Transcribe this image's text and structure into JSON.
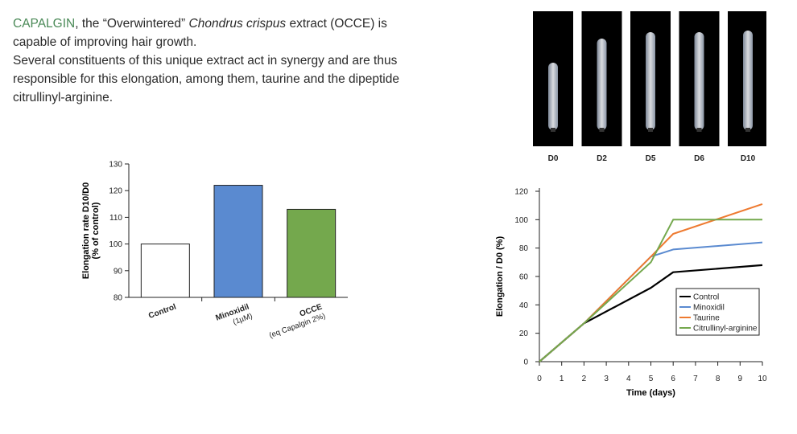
{
  "intro": {
    "line1_brand": "CAPALGIN",
    "line1_mid": ", the “Overwintered” ",
    "line1_italic": "Chondrus crispus",
    "line1_end": " extract (OCCE) is",
    "line2": "capable of improving hair growth.",
    "line3": "Several constituents of this unique extract act in synergy and are thus",
    "line4": "responsible for this elongation, among them, taurine and the dipeptide",
    "line5": "citrullinyl-arginine."
  },
  "photos": {
    "labels": [
      "D0",
      "D2",
      "D5",
      "D6",
      "D10"
    ],
    "frame_color": "#000000"
  },
  "chart_data": [
    {
      "type": "bar",
      "ylabel_line1": "Elongation rate D10/D0",
      "ylabel_line2": "(% of control)",
      "ylim": [
        80,
        130
      ],
      "yticks": [
        80,
        90,
        100,
        110,
        120,
        130
      ],
      "categories": [
        {
          "line1": "Control",
          "line2": ""
        },
        {
          "line1": "Minoxidil",
          "line2": "(1µM)"
        },
        {
          "line1": "OCCE",
          "line2": "(eq Capalgin 2%)"
        }
      ],
      "values": [
        100,
        122,
        113
      ],
      "colors": [
        "#ffffff",
        "#5a8ad0",
        "#74a84d"
      ]
    },
    {
      "type": "line",
      "xlabel": "Time (days)",
      "ylabel": "Elongation / D0 (%)",
      "xlim": [
        0,
        10
      ],
      "ylim": [
        0,
        120
      ],
      "xticks": [
        0,
        1,
        2,
        3,
        4,
        5,
        6,
        7,
        8,
        9,
        10
      ],
      "yticks": [
        0,
        20,
        40,
        60,
        80,
        100,
        120
      ],
      "series": [
        {
          "name": "Control",
          "color": "#000000",
          "x": [
            0,
            2,
            5,
            6,
            10
          ],
          "y": [
            0,
            27,
            52,
            63,
            68
          ]
        },
        {
          "name": "Minoxidil",
          "color": "#5a8ad0",
          "x": [
            0,
            2,
            5,
            6,
            10
          ],
          "y": [
            0,
            27,
            74,
            79,
            84
          ]
        },
        {
          "name": "Taurine",
          "color": "#ee7a30",
          "x": [
            0,
            2,
            5,
            6,
            10
          ],
          "y": [
            0,
            27,
            74,
            90,
            111
          ]
        },
        {
          "name": "Citrullinyl-arginine",
          "color": "#74a84d",
          "x": [
            0,
            2,
            5,
            6,
            10
          ],
          "y": [
            0,
            27,
            70,
            100,
            100
          ]
        }
      ],
      "legend_position": "bottom-right"
    }
  ]
}
